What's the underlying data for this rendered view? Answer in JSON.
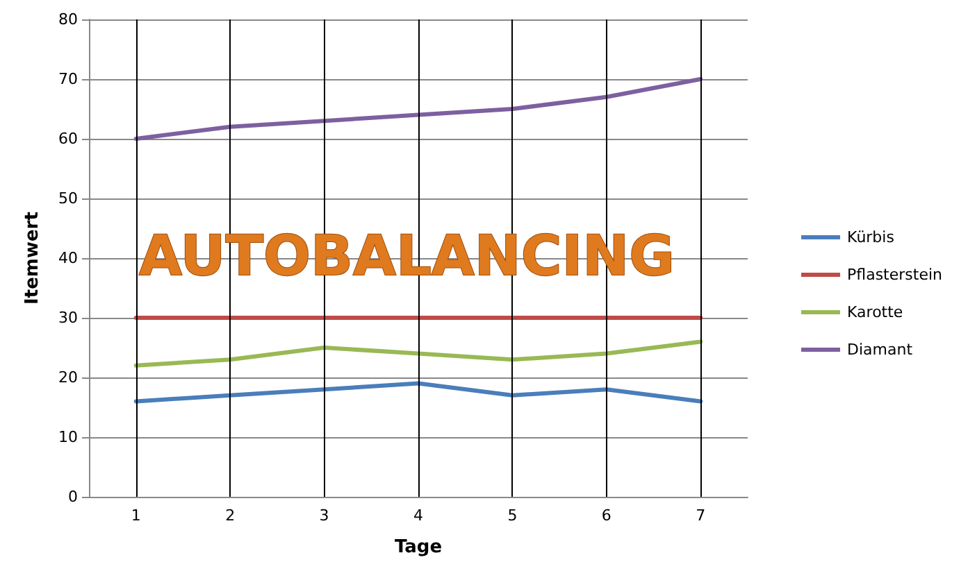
{
  "chart_data": {
    "type": "line",
    "title": "AUTOBALANCING",
    "xlabel": "Tage",
    "ylabel": "Itemwert",
    "categories": [
      "1",
      "2",
      "3",
      "4",
      "5",
      "6",
      "7"
    ],
    "series": [
      {
        "name": "Kürbis",
        "color": "#4a7ebb",
        "values": [
          16,
          17,
          18,
          19,
          17,
          18,
          16
        ]
      },
      {
        "name": "Pflasterstein",
        "color": "#be4b48",
        "values": [
          30,
          30,
          30,
          30,
          30,
          30,
          30
        ]
      },
      {
        "name": "Karotte",
        "color": "#98b954",
        "values": [
          22,
          23,
          25,
          24,
          23,
          24,
          26
        ]
      },
      {
        "name": "Diamant",
        "color": "#7d60a0",
        "values": [
          60,
          62,
          63,
          64,
          65,
          67,
          70
        ]
      }
    ],
    "ylim": [
      0,
      80
    ],
    "yticks": [
      0,
      10,
      20,
      30,
      40,
      50,
      60,
      70,
      80
    ],
    "grid": true,
    "legend": "right",
    "marker": "none",
    "line_style": "solid"
  }
}
